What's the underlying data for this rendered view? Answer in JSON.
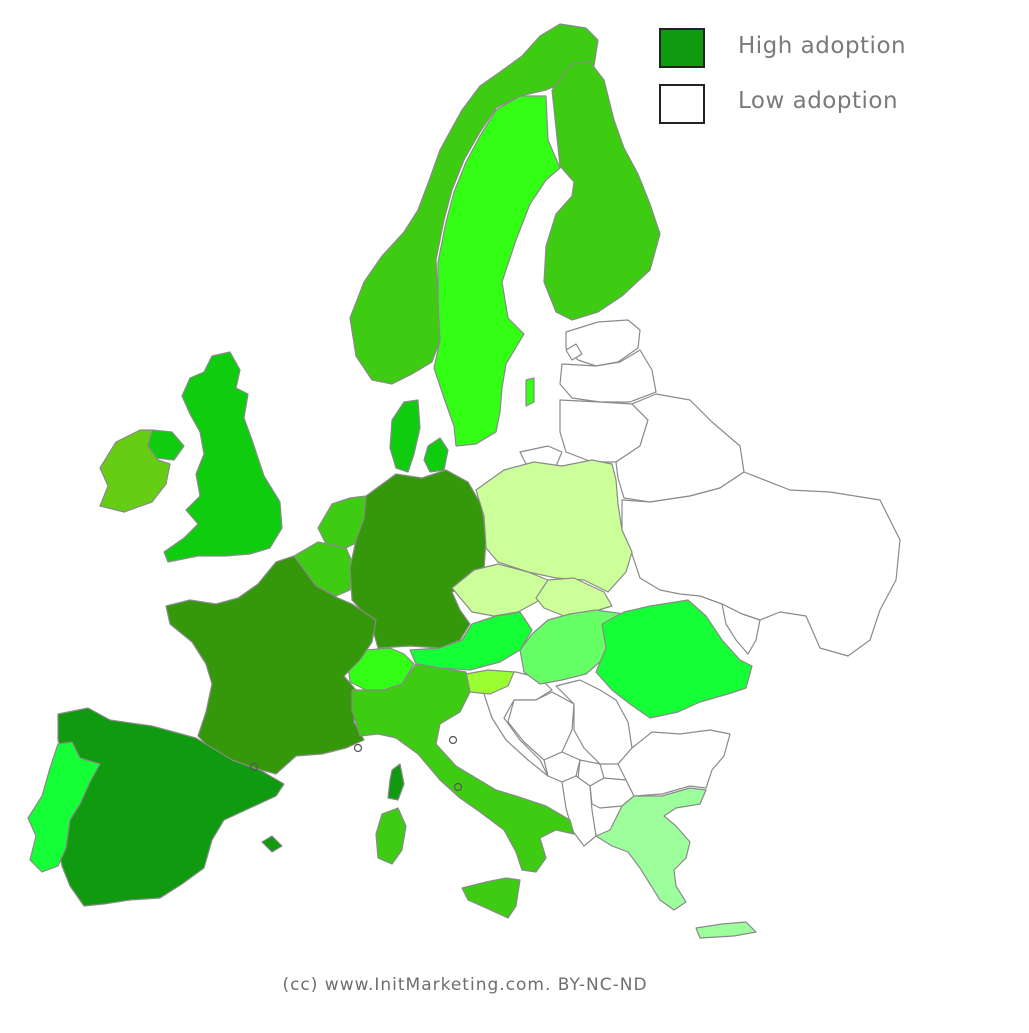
{
  "colors": {
    "high": "#0f9a0f",
    "low": "#ffffff",
    "scale": {
      "c1": "#0f9a0f",
      "c2": "#35980b",
      "c3": "#3dcc11",
      "c4": "#0fcc0f",
      "c5": "#33ff14",
      "c6": "#14ff36",
      "c7": "#66ff66",
      "c8": "#66cc14",
      "c9": "#99ff33",
      "c10": "#9cff9c",
      "c11": "#ccff99",
      "c12": "#ffffff"
    }
  },
  "legend": {
    "items": [
      {
        "label": "High adoption",
        "color": "#0f9a0f"
      },
      {
        "label": "Low adoption",
        "color": "#ffffff"
      }
    ]
  },
  "countries": [
    {
      "name": "Spain",
      "level": "c1"
    },
    {
      "name": "France",
      "level": "c2"
    },
    {
      "name": "Germany",
      "level": "c2"
    },
    {
      "name": "Norway",
      "level": "c3"
    },
    {
      "name": "Finland",
      "level": "c3"
    },
    {
      "name": "Italy",
      "level": "c3"
    },
    {
      "name": "Netherlands",
      "level": "c3"
    },
    {
      "name": "Belgium",
      "level": "c3"
    },
    {
      "name": "United Kingdom",
      "level": "c4"
    },
    {
      "name": "Denmark",
      "level": "c4"
    },
    {
      "name": "Sweden",
      "level": "c5"
    },
    {
      "name": "Switzerland",
      "level": "c5"
    },
    {
      "name": "Portugal",
      "level": "c6"
    },
    {
      "name": "Romania",
      "level": "c6"
    },
    {
      "name": "Austria",
      "level": "c6"
    },
    {
      "name": "Hungary",
      "level": "c7"
    },
    {
      "name": "Ireland",
      "level": "c8"
    },
    {
      "name": "Slovenia",
      "level": "c9"
    },
    {
      "name": "Greece",
      "level": "c10"
    },
    {
      "name": "Poland",
      "level": "c11"
    },
    {
      "name": "Czech Republic",
      "level": "c11"
    },
    {
      "name": "Slovakia",
      "level": "c11"
    },
    {
      "name": "Estonia",
      "level": "c12"
    },
    {
      "name": "Latvia",
      "level": "c12"
    },
    {
      "name": "Lithuania",
      "level": "c12"
    },
    {
      "name": "Belarus",
      "level": "c12"
    },
    {
      "name": "Ukraine",
      "level": "c12"
    },
    {
      "name": "Moldova",
      "level": "c12"
    },
    {
      "name": "Serbia",
      "level": "c12"
    },
    {
      "name": "Croatia",
      "level": "c12"
    },
    {
      "name": "Bosnia and Herzegovina",
      "level": "c12"
    },
    {
      "name": "Montenegro",
      "level": "c12"
    },
    {
      "name": "Albania",
      "level": "c12"
    },
    {
      "name": "North Macedonia",
      "level": "c12"
    },
    {
      "name": "Bulgaria",
      "level": "c12"
    },
    {
      "name": "Kosovo",
      "level": "c12"
    },
    {
      "name": "Russia (Kaliningrad)",
      "level": "c12"
    }
  ],
  "credit": "(cc) www.InitMarketing.com. BY-NC-ND"
}
